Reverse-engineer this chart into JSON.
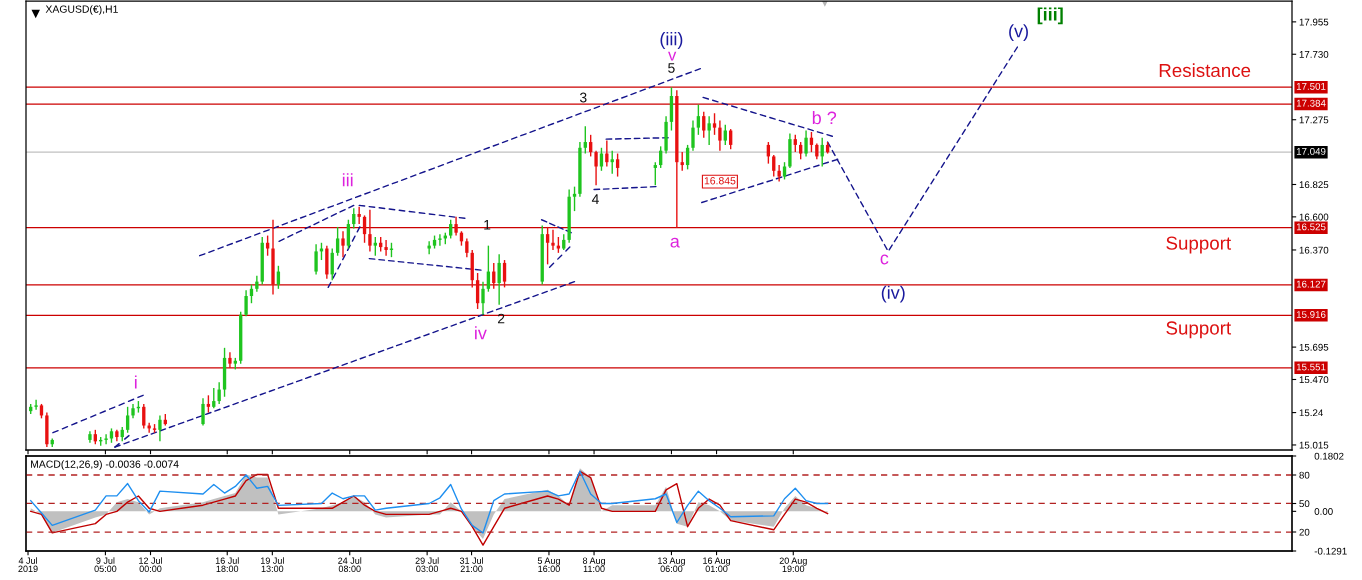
{
  "chart_data": [
    {
      "type": "candlestick",
      "title": "XAGUSD(€),H1",
      "x": [
        "2019-07-04T14:00",
        "2019-07-04T22:00",
        "2019-07-05T06:00",
        "2019-07-05T14:00",
        "2019-07-05T22:00",
        "2019-07-08T06:00",
        "2019-07-08T14:00",
        "2019-07-08T22:00",
        "2019-07-09T06:00",
        "2019-07-09T14:00",
        "2019-07-09T22:00",
        "2019-07-10T06:00",
        "2019-07-10T14:00",
        "2019-07-10T22:00",
        "2019-07-11T06:00",
        "2019-07-11T14:00",
        "2019-07-11T22:00",
        "2019-07-12T06:00",
        "2019-07-12T14:00",
        "2019-07-12T22:00",
        "2019-07-15T06:00",
        "2019-07-15T14:00",
        "2019-07-15T22:00",
        "2019-07-16T06:00",
        "2019-07-16T14:00",
        "2019-07-16T22:00",
        "2019-07-17T06:00",
        "2019-07-17T14:00",
        "2019-07-17T22:00",
        "2019-07-18T06:00",
        "2019-07-18T14:00",
        "2019-07-18T22:00",
        "2019-07-19T06:00",
        "2019-07-19T14:00",
        "2019-07-19T22:00",
        "2019-07-22T06:00",
        "2019-07-22T14:00",
        "2019-07-22T22:00",
        "2019-07-23T06:00",
        "2019-07-23T14:00",
        "2019-07-23T22:00",
        "2019-07-24T06:00",
        "2019-07-24T14:00",
        "2019-07-24T22:00",
        "2019-07-25T06:00",
        "2019-07-25T14:00",
        "2019-07-25T22:00",
        "2019-07-26T06:00",
        "2019-07-26T14:00",
        "2019-07-26T22:00",
        "2019-07-29T06:00",
        "2019-07-29T14:00",
        "2019-07-29T22:00",
        "2019-07-30T06:00",
        "2019-07-30T14:00",
        "2019-07-30T22:00",
        "2019-07-31T06:00",
        "2019-07-31T14:00",
        "2019-07-31T22:00",
        "2019-08-01T06:00",
        "2019-08-01T14:00",
        "2019-08-01T22:00",
        "2019-08-02T06:00",
        "2019-08-02T14:00",
        "2019-08-02T22:00",
        "2019-08-05T06:00",
        "2019-08-05T14:00",
        "2019-08-05T22:00",
        "2019-08-06T06:00",
        "2019-08-06T14:00",
        "2019-08-06T22:00",
        "2019-08-07T06:00",
        "2019-08-07T14:00",
        "2019-08-07T22:00",
        "2019-08-08T06:00",
        "2019-08-08T14:00",
        "2019-08-08T22:00",
        "2019-08-09T06:00",
        "2019-08-09T14:00",
        "2019-08-09T22:00",
        "2019-08-12T06:00",
        "2019-08-12T14:00",
        "2019-08-12T22:00",
        "2019-08-13T06:00",
        "2019-08-13T14:00",
        "2019-08-13T22:00",
        "2019-08-14T06:00",
        "2019-08-14T14:00",
        "2019-08-14T22:00",
        "2019-08-15T06:00",
        "2019-08-15T14:00",
        "2019-08-15T22:00",
        "2019-08-16T06:00",
        "2019-08-16T14:00",
        "2019-08-16T22:00",
        "2019-08-19T06:00",
        "2019-08-19T14:00",
        "2019-08-19T22:00",
        "2019-08-20T06:00",
        "2019-08-20T14:00",
        "2019-08-20T22:00",
        "2019-08-21T06:00",
        "2019-08-21T14:00",
        "2019-08-21T22:00",
        "2019-08-22T06:00",
        "2019-08-22T14:00",
        "2019-08-22T22:00"
      ],
      "ohlc": [
        [
          15.25,
          15.3,
          15.23,
          15.28
        ],
        [
          15.28,
          15.33,
          15.26,
          15.29
        ],
        [
          15.29,
          15.3,
          15.2,
          15.22
        ],
        [
          15.22,
          15.24,
          15.0,
          15.02
        ],
        [
          15.02,
          15.06,
          15.0,
          15.05
        ],
        [
          15.05,
          15.11,
          15.03,
          15.09
        ],
        [
          15.09,
          15.12,
          15.02,
          15.04
        ],
        [
          15.04,
          15.07,
          15.01,
          15.05
        ],
        [
          15.05,
          15.09,
          15.02,
          15.06
        ],
        [
          15.06,
          15.13,
          15.03,
          15.11
        ],
        [
          15.11,
          15.12,
          15.04,
          15.07
        ],
        [
          15.07,
          15.14,
          15.04,
          15.12
        ],
        [
          15.12,
          15.28,
          15.1,
          15.22
        ],
        [
          15.22,
          15.3,
          15.2,
          15.27
        ],
        [
          15.27,
          15.32,
          15.24,
          15.28
        ],
        [
          15.28,
          15.3,
          15.13,
          15.15
        ],
        [
          15.15,
          15.17,
          15.1,
          15.13
        ],
        [
          15.13,
          15.16,
          15.1,
          15.12
        ],
        [
          15.12,
          15.22,
          15.04,
          15.19
        ],
        [
          15.19,
          15.23,
          15.15,
          15.16
        ],
        [
          15.16,
          15.34,
          15.15,
          15.3
        ],
        [
          15.3,
          15.36,
          15.24,
          15.28
        ],
        [
          15.28,
          15.41,
          15.27,
          15.32
        ],
        [
          15.32,
          15.45,
          15.3,
          15.4
        ],
        [
          15.4,
          15.69,
          15.35,
          15.62
        ],
        [
          15.62,
          15.66,
          15.55,
          15.58
        ],
        [
          15.58,
          15.62,
          15.54,
          15.6
        ],
        [
          15.6,
          15.94,
          15.58,
          15.92
        ],
        [
          15.92,
          16.09,
          15.91,
          16.05
        ],
        [
          16.05,
          16.13,
          16.0,
          16.1
        ],
        [
          16.1,
          16.19,
          16.08,
          16.15
        ],
        [
          16.15,
          16.46,
          16.13,
          16.42
        ],
        [
          16.42,
          16.47,
          16.33,
          16.38
        ],
        [
          16.38,
          16.58,
          16.06,
          16.13
        ],
        [
          16.13,
          16.26,
          16.1,
          16.22
        ],
        [
          16.22,
          16.41,
          16.2,
          16.36
        ],
        [
          16.36,
          16.42,
          16.3,
          16.38
        ],
        [
          16.38,
          16.4,
          16.17,
          16.2
        ],
        [
          16.2,
          16.38,
          16.16,
          16.35
        ],
        [
          16.35,
          16.53,
          16.33,
          16.45
        ],
        [
          16.45,
          16.5,
          16.32,
          16.4
        ],
        [
          16.4,
          16.58,
          16.38,
          16.55
        ],
        [
          16.55,
          16.66,
          16.52,
          16.62
        ],
        [
          16.62,
          16.67,
          16.55,
          16.6
        ],
        [
          16.6,
          16.61,
          16.42,
          16.48
        ],
        [
          16.48,
          16.65,
          16.36,
          16.4
        ],
        [
          16.4,
          16.46,
          16.33,
          16.42
        ],
        [
          16.42,
          16.46,
          16.36,
          16.39
        ],
        [
          16.39,
          16.44,
          16.33,
          16.37
        ],
        [
          16.37,
          16.42,
          16.32,
          16.38
        ],
        [
          16.38,
          16.43,
          16.34,
          16.4
        ],
        [
          16.4,
          16.47,
          16.38,
          16.44
        ],
        [
          16.44,
          16.48,
          16.4,
          16.45
        ],
        [
          16.45,
          16.49,
          16.41,
          16.47
        ],
        [
          16.47,
          16.58,
          16.45,
          16.55
        ],
        [
          16.55,
          16.6,
          16.47,
          16.49
        ],
        [
          16.49,
          16.5,
          16.4,
          16.43
        ],
        [
          16.43,
          16.45,
          16.32,
          16.35
        ],
        [
          16.35,
          16.37,
          16.11,
          16.16
        ],
        [
          16.16,
          16.21,
          15.96,
          16.0
        ],
        [
          16.0,
          16.15,
          15.92,
          16.1
        ],
        [
          16.1,
          16.4,
          16.08,
          16.22
        ],
        [
          16.22,
          16.28,
          16.1,
          16.14
        ],
        [
          16.14,
          16.34,
          15.99,
          16.28
        ],
        [
          16.28,
          16.3,
          16.11,
          16.15
        ],
        [
          16.15,
          16.54,
          16.13,
          16.48
        ],
        [
          16.48,
          16.53,
          16.27,
          16.42
        ],
        [
          16.42,
          16.51,
          16.37,
          16.4
        ],
        [
          16.4,
          16.46,
          16.35,
          16.38
        ],
        [
          16.38,
          16.48,
          16.37,
          16.44
        ],
        [
          16.44,
          16.79,
          16.42,
          16.74
        ],
        [
          16.74,
          16.81,
          16.64,
          16.76
        ],
        [
          16.76,
          17.12,
          16.74,
          17.08
        ],
        [
          17.08,
          17.23,
          17.04,
          17.12
        ],
        [
          17.12,
          17.17,
          17.02,
          17.05
        ],
        [
          17.05,
          17.06,
          16.82,
          16.95
        ],
        [
          16.95,
          17.08,
          16.92,
          17.04
        ],
        [
          17.04,
          17.13,
          16.95,
          16.98
        ],
        [
          16.98,
          17.06,
          16.9,
          17.0
        ],
        [
          17.0,
          17.04,
          16.88,
          16.94
        ],
        [
          16.94,
          16.98,
          16.82,
          16.96
        ],
        [
          16.96,
          17.09,
          16.94,
          17.06
        ],
        [
          17.06,
          17.3,
          17.04,
          17.26
        ],
        [
          17.26,
          17.5,
          17.2,
          17.44
        ],
        [
          17.44,
          17.48,
          16.525,
          16.98
        ],
        [
          16.98,
          17.05,
          16.92,
          16.96
        ],
        [
          16.96,
          17.1,
          16.93,
          17.08
        ],
        [
          17.08,
          17.27,
          17.06,
          17.22
        ],
        [
          17.22,
          17.38,
          17.17,
          17.3
        ],
        [
          17.3,
          17.33,
          17.15,
          17.2
        ],
        [
          17.2,
          17.3,
          17.1,
          17.25
        ],
        [
          17.25,
          17.32,
          17.17,
          17.22
        ],
        [
          17.22,
          17.27,
          17.06,
          17.13
        ],
        [
          17.13,
          17.24,
          17.1,
          17.2
        ],
        [
          17.2,
          17.21,
          17.07,
          17.1
        ],
        [
          17.1,
          17.12,
          16.97,
          17.02
        ],
        [
          17.02,
          17.03,
          16.88,
          16.92
        ],
        [
          16.92,
          16.96,
          16.845,
          16.88
        ],
        [
          16.88,
          16.98,
          16.86,
          16.95
        ],
        [
          16.95,
          17.18,
          16.94,
          17.14
        ],
        [
          17.14,
          17.17,
          17.05,
          17.1
        ],
        [
          17.1,
          17.12,
          17.0,
          17.04
        ],
        [
          17.04,
          17.2,
          17.02,
          17.15
        ],
        [
          17.15,
          17.19,
          17.05,
          17.1
        ],
        [
          17.1,
          17.11,
          17.0,
          17.02
        ],
        [
          17.02,
          17.15,
          16.95,
          17.1
        ],
        [
          17.1,
          17.12,
          17.04,
          17.049
        ]
      ],
      "colors": [
        "#1fc41f",
        "#1fc41f",
        "#e81010",
        "#e81010",
        "#1fc41f",
        "#1fc41f",
        "#e81010",
        "#1fc41f",
        "#1fc41f",
        "#1fc41f",
        "#e81010",
        "#1fc41f",
        "#1fc41f",
        "#1fc41f",
        "#1fc41f",
        "#e81010",
        "#e81010",
        "#e81010",
        "#1fc41f",
        "#e81010",
        "#1fc41f",
        "#e81010",
        "#1fc41f",
        "#1fc41f",
        "#1fc41f",
        "#e81010",
        "#1fc41f",
        "#1fc41f",
        "#1fc41f",
        "#1fc41f",
        "#1fc41f",
        "#1fc41f",
        "#e81010",
        "#e81010",
        "#1fc41f",
        "#1fc41f",
        "#1fc41f",
        "#e81010",
        "#1fc41f",
        "#1fc41f",
        "#e81010",
        "#1fc41f",
        "#1fc41f",
        "#e81010",
        "#e81010",
        "#e81010",
        "#1fc41f",
        "#e81010",
        "#e81010",
        "#1fc41f",
        "#1fc41f",
        "#1fc41f",
        "#1fc41f",
        "#1fc41f",
        "#1fc41f",
        "#e81010",
        "#e81010",
        "#e81010",
        "#e81010",
        "#e81010",
        "#1fc41f",
        "#1fc41f",
        "#e81010",
        "#1fc41f",
        "#e81010",
        "#1fc41f",
        "#e81010",
        "#e81010",
        "#e81010",
        "#1fc41f",
        "#1fc41f",
        "#1fc41f",
        "#1fc41f",
        "#1fc41f",
        "#e81010",
        "#e81010",
        "#1fc41f",
        "#e81010",
        "#1fc41f",
        "#e81010",
        "#1fc41f",
        "#1fc41f",
        "#1fc41f",
        "#1fc41f",
        "#e81010",
        "#e81010",
        "#1fc41f",
        "#1fc41f",
        "#1fc41f",
        "#e81010",
        "#1fc41f",
        "#e81010",
        "#e81010",
        "#1fc41f",
        "#e81010",
        "#e81010",
        "#e81010",
        "#e81010",
        "#1fc41f",
        "#1fc41f",
        "#e81010",
        "#e81010",
        "#1fc41f",
        "#e81010",
        "#e81010",
        "#1fc41f",
        "#e81010"
      ],
      "series": [
        {
          "type": "line",
          "color": "#14148c",
          "line_style": "dashed",
          "x": [
            "2019-07-15T01:00",
            "2019-08-15T01:00"
          ],
          "values": [
            16.33,
            17.63
          ]
        },
        {
          "type": "line",
          "color": "#14148c",
          "line_style": "dashed",
          "x": [
            "2019-07-09T19:00",
            "2019-08-07T06:00"
          ],
          "values": [
            15.0,
            16.15
          ]
        },
        {
          "type": "line",
          "color": "#14148c",
          "line_style": "dashed",
          "x": [
            "2019-07-05T23:00",
            "2019-07-11T13:00"
          ],
          "values": [
            15.1,
            15.36
          ]
        },
        {
          "type": "line",
          "color": "#14148c",
          "line_style": "dashed",
          "x": [
            "2019-07-09T19:00",
            "2019-07-10T16:00"
          ],
          "values": [
            15.0,
            15.08
          ]
        },
        {
          "type": "line",
          "color": "#14148c",
          "line_style": "dashed",
          "x": [
            "2019-07-19T23:00",
            "2019-07-24T14:00"
          ],
          "values": [
            16.43,
            16.68
          ]
        },
        {
          "type": "line",
          "color": "#14148c",
          "line_style": "dashed",
          "x": [
            "2019-07-23T00:00",
            "2019-07-24T23:00"
          ],
          "values": [
            16.11,
            16.53
          ]
        },
        {
          "type": "line",
          "color": "#14148c",
          "line_style": "dashed",
          "x": [
            "2019-07-24T22:00",
            "2019-07-31T11:00"
          ],
          "values": [
            16.68,
            16.59
          ]
        },
        {
          "type": "line",
          "color": "#14148c",
          "line_style": "dashed",
          "x": [
            "2019-07-25T13:00",
            "2019-08-01T11:00"
          ],
          "values": [
            16.31,
            16.23
          ]
        },
        {
          "type": "line",
          "color": "#14148c",
          "line_style": "dashed",
          "x": [
            "2019-08-05T05:00",
            "2019-08-07T01:00"
          ],
          "values": [
            16.58,
            16.49
          ]
        },
        {
          "type": "line",
          "color": "#14148c",
          "line_style": "dashed",
          "x": [
            "2019-08-05T17:00",
            "2019-08-06T23:00"
          ],
          "values": [
            16.25,
            16.39
          ]
        },
        {
          "type": "line",
          "color": "#14148c",
          "line_style": "dashed",
          "x": [
            "2019-08-09T05:00",
            "2019-08-13T01:00"
          ],
          "values": [
            17.14,
            17.15
          ]
        },
        {
          "type": "line",
          "color": "#14148c",
          "line_style": "dashed",
          "x": [
            "2019-08-08T11:00",
            "2019-08-12T07:00"
          ],
          "values": [
            16.79,
            16.81
          ]
        },
        {
          "type": "line",
          "color": "#14148c",
          "line_style": "dashed",
          "x": [
            "2019-08-15T05:00",
            "2019-08-23T05:00"
          ],
          "values": [
            17.43,
            17.16
          ]
        },
        {
          "type": "line",
          "color": "#14148c",
          "line_style": "dashed",
          "x": [
            "2019-08-15T03:00",
            "2019-08-23T13:00"
          ],
          "values": [
            16.7,
            17.0
          ]
        },
        {
          "type": "line",
          "color": "#14148c",
          "line_style": "dashed",
          "x": [
            "2019-08-22T22:00",
            "2019-08-26T16:00",
            "2019-09-03T16:00"
          ],
          "values": [
            17.12,
            16.36,
            17.78
          ]
        }
      ],
      "xlim": [
        "2019-07-04T07:00",
        "2019-09-20T16:00"
      ],
      "xticks": [
        {
          "value": "2019-07-04T10:00",
          "label": null
        },
        {
          "value": "2019-07-09T05:00",
          "label": null
        },
        {
          "value": "2019-07-12T00:00",
          "label": null
        },
        {
          "value": "2019-07-16T18:00",
          "label": null
        },
        {
          "value": "2019-07-19T13:00",
          "label": null
        },
        {
          "value": "2019-07-24T08:00",
          "label": null
        },
        {
          "value": "2019-07-29T03:00",
          "label": null
        },
        {
          "value": "2019-07-31T21:00",
          "label": null
        },
        {
          "value": "2019-08-05T16:00",
          "label": null
        },
        {
          "value": "2019-08-08T11:00",
          "label": null
        },
        {
          "value": "2019-08-13T06:00",
          "label": null
        },
        {
          "value": "2019-08-16T01:00",
          "label": null
        },
        {
          "value": "2019-08-20T19:00",
          "label": null
        }
      ],
      "ylim": [
        14.98,
        18.1
      ],
      "yticks": [
        15.015,
        15.24,
        {
          "value": 15.47,
          "label": "15.470"
        },
        15.695,
        {
          "value": 16.37,
          "label": "16.370"
        },
        {
          "value": 16.6,
          "label": "16.600"
        },
        16.825,
        17.275,
        {
          "value": 17.73,
          "label": "17.730"
        },
        17.955
      ],
      "tick_labels": "y",
      "ref_lines": [
        {
          "axis": "y",
          "value": 17.501,
          "label": "17.501",
          "color": "#cc0000"
        },
        {
          "axis": "y",
          "value": 17.384,
          "label": "17.384",
          "color": "#cc0000"
        },
        {
          "axis": "y",
          "value": 17.049,
          "label": "17.049",
          "color": "#c0c0c0"
        },
        {
          "axis": "y",
          "value": 16.525,
          "label": "16.525",
          "color": "#cc0000"
        },
        {
          "axis": "y",
          "value": 16.127,
          "label": "16.127",
          "color": "#cc0000"
        },
        {
          "axis": "y",
          "value": 15.916,
          "label": "15.916",
          "color": "#cc0000"
        },
        {
          "axis": "y",
          "value": 15.551,
          "label": "15.551",
          "color": "#cc0000"
        }
      ],
      "annotations": [
        "(iii)",
        "v",
        "5",
        "3",
        "4",
        "a",
        "b ?",
        "c",
        "(iv)",
        "(v)",
        "[iii]",
        "iii",
        "i",
        "iv",
        "1",
        "2",
        "Resistance",
        "Support",
        "Support",
        {
          "text": "16.845",
          "x": "2019-08-16T06:00",
          "y": 16.845
        }
      ]
    },
    {
      "type": "line",
      "title": "MACD(12,26,9) -0.0036 -0.0074",
      "x": [
        "2019-07-04T14:00",
        "2019-07-05T06:00",
        "2019-07-05T22:00",
        "2019-07-08T14:00",
        "2019-07-09T06:00",
        "2019-07-09T22:00",
        "2019-07-10T14:00",
        "2019-07-11T06:00",
        "2019-07-11T22:00",
        "2019-07-12T14:00",
        "2019-07-15T06:00",
        "2019-07-15T22:00",
        "2019-07-16T14:00",
        "2019-07-17T06:00",
        "2019-07-17T22:00",
        "2019-07-18T14:00",
        "2019-07-19T06:00",
        "2019-07-19T22:00",
        "2019-07-22T14:00",
        "2019-07-23T06:00",
        "2019-07-23T22:00",
        "2019-07-24T14:00",
        "2019-07-25T06:00",
        "2019-07-25T22:00",
        "2019-07-26T14:00",
        "2019-07-29T06:00",
        "2019-07-29T22:00",
        "2019-07-30T14:00",
        "2019-07-31T06:00",
        "2019-07-31T22:00",
        "2019-08-01T14:00",
        "2019-08-02T06:00",
        "2019-08-02T22:00",
        "2019-08-05T14:00",
        "2019-08-06T06:00",
        "2019-08-06T22:00",
        "2019-08-07T14:00",
        "2019-08-08T06:00",
        "2019-08-08T22:00",
        "2019-08-09T14:00",
        "2019-08-12T06:00",
        "2019-08-12T22:00",
        "2019-08-13T14:00",
        "2019-08-14T06:00",
        "2019-08-14T22:00",
        "2019-08-15T14:00",
        "2019-08-16T06:00",
        "2019-08-16T22:00",
        "2019-08-19T14:00",
        "2019-08-20T06:00",
        "2019-08-20T22:00",
        "2019-08-21T14:00",
        "2019-08-22T06:00",
        "2019-08-22T22:00"
      ],
      "series": [
        {
          "type": "area",
          "color": "#c0c0c0",
          "values": [
            0.01,
            -0.01,
            -0.07,
            -0.02,
            -0.01,
            0.03,
            0.04,
            0.03,
            -0.01,
            0.01,
            0.03,
            0.04,
            0.05,
            0.06,
            0.12,
            0.11,
            0.11,
            -0.01,
            0.01,
            0.02,
            0.03,
            0.05,
            0.03,
            -0.01,
            -0.02,
            -0.01,
            -0.01,
            0.03,
            0.0,
            -0.05,
            -0.09,
            -0.01,
            0.04,
            0.07,
            0.05,
            0.02,
            0.14,
            0.11,
            0.0,
            0.02,
            0.02,
            0.08,
            -0.04,
            -0.05,
            0.03,
            0.02,
            0.0,
            -0.03,
            -0.05,
            0.01,
            0.05,
            0.02,
            0.01,
            -0.004
          ]
        },
        {
          "type": "line",
          "color": "#c00000",
          "values": [
            0.0,
            -0.01,
            -0.07,
            -0.04,
            -0.01,
            0.0,
            0.03,
            0.05,
            0.01,
            0.0,
            0.02,
            0.03,
            0.04,
            0.05,
            0.1,
            0.12,
            0.12,
            0.01,
            0.01,
            0.01,
            0.03,
            0.05,
            0.02,
            0.0,
            -0.01,
            -0.01,
            0.0,
            0.01,
            0.0,
            -0.05,
            -0.11,
            -0.05,
            0.01,
            0.05,
            0.04,
            0.02,
            0.13,
            0.11,
            0.01,
            0.0,
            0.0,
            0.07,
            0.09,
            -0.05,
            0.01,
            0.04,
            0.02,
            -0.03,
            -0.06,
            -0.01,
            0.04,
            0.03,
            0.01,
            -0.007
          ]
        },
        {
          "type": "line",
          "color": "#1e8ff0",
          "axis": "y2",
          "values": [
            53,
            40,
            27,
            43,
            58,
            58,
            71,
            53,
            41,
            63,
            60,
            70,
            61,
            68,
            80,
            66,
            68,
            48,
            50,
            61,
            55,
            58,
            58,
            43,
            45,
            50,
            56,
            70,
            44,
            27,
            19,
            53,
            60,
            63,
            58,
            60,
            84,
            60,
            50,
            50,
            55,
            60,
            30,
            48,
            63,
            53,
            45,
            36,
            37,
            55,
            66,
            53,
            50,
            50
          ]
        }
      ],
      "xlim": [
        "2019-07-04T07:00",
        "2019-09-20T16:00"
      ],
      "xticks": [
        {
          "value": "2019-07-04T10:00",
          "label": "4 Jul 2019"
        },
        {
          "value": "2019-07-09T05:00",
          "label": "9 Jul 05:00"
        },
        {
          "value": "2019-07-12T00:00",
          "label": "12 Jul 00:00"
        },
        {
          "value": "2019-07-16T18:00",
          "label": "16 Jul 18:00"
        },
        {
          "value": "2019-07-19T13:00",
          "label": "19 Jul 13:00"
        },
        {
          "value": "2019-07-24T08:00",
          "label": "24 Jul 08:00"
        },
        {
          "value": "2019-07-29T03:00",
          "label": "29 Jul 03:00"
        },
        {
          "value": "2019-07-31T21:00",
          "label": "31 Jul 21:00"
        },
        {
          "value": "2019-08-05T16:00",
          "label": "5 Aug 16:00"
        },
        {
          "value": "2019-08-08T11:00",
          "label": "8 Aug 11:00"
        },
        {
          "value": "2019-08-13T06:00",
          "label": "13 Aug 06:00"
        },
        {
          "value": "2019-08-16T01:00",
          "label": "16 Aug 01:00"
        },
        {
          "value": "2019-08-20T19:00",
          "label": "20 Aug 19:00"
        }
      ],
      "ylim": [
        -0.1291,
        0.1802
      ],
      "yticks": [
        0.1802,
        {
          "value": 0,
          "label": "0.00"
        },
        -0.1291
      ],
      "y2lim": [
        0,
        100
      ],
      "y2ticks": [
        20,
        50,
        80
      ],
      "ref_lines": [
        {
          "axis": "y2",
          "value": 80,
          "color": "#b22222",
          "line_style": "dashed"
        },
        {
          "axis": "y2",
          "value": 50,
          "color": "#b22222",
          "line_style": "dashed"
        },
        {
          "axis": "y2",
          "value": 20,
          "color": "#b22222",
          "line_style": "dashed"
        }
      ]
    }
  ]
}
